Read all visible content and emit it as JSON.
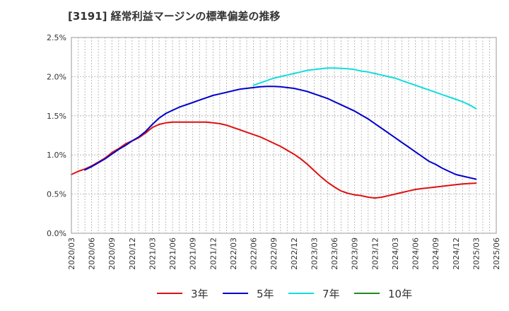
{
  "chart_data": {
    "type": "line",
    "title": "[3191]  経常利益マージンの標準偏差の推移",
    "xlabel": "",
    "ylabel": "",
    "ylim": [
      0,
      2.5
    ],
    "y_ticks": [
      "0.0%",
      "0.5%",
      "1.0%",
      "1.5%",
      "2.0%",
      "2.5%"
    ],
    "x_ticks": [
      "2020/03",
      "2020/06",
      "2020/09",
      "2020/12",
      "2021/03",
      "2021/06",
      "2021/09",
      "2021/12",
      "2022/03",
      "2022/06",
      "2022/09",
      "2022/12",
      "2023/03",
      "2023/06",
      "2023/09",
      "2023/12",
      "2024/03",
      "2024/06",
      "2024/09",
      "2024/12",
      "2025/03",
      "2025/06"
    ],
    "grid": true,
    "legend_position": "bottom",
    "series": [
      {
        "name": "3年",
        "color": "#dd1111",
        "points": [
          [
            "2020/03",
            0.75
          ],
          [
            "2020/04",
            0.79
          ],
          [
            "2020/05",
            0.82
          ],
          [
            "2020/06",
            0.86
          ],
          [
            "2020/07",
            0.91
          ],
          [
            "2020/08",
            0.96
          ],
          [
            "2020/09",
            1.03
          ],
          [
            "2020/10",
            1.08
          ],
          [
            "2020/11",
            1.14
          ],
          [
            "2020/12",
            1.18
          ],
          [
            "2021/01",
            1.22
          ],
          [
            "2021/02",
            1.28
          ],
          [
            "2021/03",
            1.35
          ],
          [
            "2021/04",
            1.39
          ],
          [
            "2021/05",
            1.41
          ],
          [
            "2021/06",
            1.42
          ],
          [
            "2021/07",
            1.42
          ],
          [
            "2021/08",
            1.42
          ],
          [
            "2021/09",
            1.42
          ],
          [
            "2021/10",
            1.42
          ],
          [
            "2021/11",
            1.42
          ],
          [
            "2021/12",
            1.41
          ],
          [
            "2022/01",
            1.4
          ],
          [
            "2022/02",
            1.38
          ],
          [
            "2022/03",
            1.35
          ],
          [
            "2022/04",
            1.32
          ],
          [
            "2022/05",
            1.29
          ],
          [
            "2022/06",
            1.26
          ],
          [
            "2022/07",
            1.23
          ],
          [
            "2022/08",
            1.19
          ],
          [
            "2022/09",
            1.15
          ],
          [
            "2022/10",
            1.11
          ],
          [
            "2022/11",
            1.06
          ],
          [
            "2022/12",
            1.01
          ],
          [
            "2023/01",
            0.95
          ],
          [
            "2023/02",
            0.88
          ],
          [
            "2023/03",
            0.8
          ],
          [
            "2023/04",
            0.72
          ],
          [
            "2023/05",
            0.65
          ],
          [
            "2023/06",
            0.59
          ],
          [
            "2023/07",
            0.54
          ],
          [
            "2023/08",
            0.51
          ],
          [
            "2023/09",
            0.49
          ],
          [
            "2023/10",
            0.48
          ],
          [
            "2023/11",
            0.46
          ],
          [
            "2023/12",
            0.45
          ],
          [
            "2024/01",
            0.46
          ],
          [
            "2024/02",
            0.48
          ],
          [
            "2024/03",
            0.5
          ],
          [
            "2024/04",
            0.52
          ],
          [
            "2024/05",
            0.54
          ],
          [
            "2024/06",
            0.56
          ],
          [
            "2024/07",
            0.57
          ],
          [
            "2024/08",
            0.58
          ],
          [
            "2024/09",
            0.59
          ],
          [
            "2024/10",
            0.6
          ],
          [
            "2024/11",
            0.61
          ],
          [
            "2024/12",
            0.62
          ],
          [
            "2025/01",
            0.63
          ],
          [
            "2025/02",
            0.635
          ],
          [
            "2025/03",
            0.64
          ]
        ]
      },
      {
        "name": "5年",
        "color": "#0000cc",
        "points": [
          [
            "2020/05",
            0.81
          ],
          [
            "2020/06",
            0.85
          ],
          [
            "2020/07",
            0.9
          ],
          [
            "2020/08",
            0.95
          ],
          [
            "2020/09",
            1.01
          ],
          [
            "2020/10",
            1.07
          ],
          [
            "2020/11",
            1.12
          ],
          [
            "2020/12",
            1.18
          ],
          [
            "2021/01",
            1.23
          ],
          [
            "2021/02",
            1.3
          ],
          [
            "2021/03",
            1.39
          ],
          [
            "2021/04",
            1.47
          ],
          [
            "2021/05",
            1.53
          ],
          [
            "2021/06",
            1.57
          ],
          [
            "2021/07",
            1.61
          ],
          [
            "2021/08",
            1.64
          ],
          [
            "2021/09",
            1.67
          ],
          [
            "2021/10",
            1.7
          ],
          [
            "2021/11",
            1.73
          ],
          [
            "2021/12",
            1.76
          ],
          [
            "2022/01",
            1.78
          ],
          [
            "2022/02",
            1.8
          ],
          [
            "2022/03",
            1.82
          ],
          [
            "2022/04",
            1.84
          ],
          [
            "2022/05",
            1.85
          ],
          [
            "2022/06",
            1.86
          ],
          [
            "2022/07",
            1.87
          ],
          [
            "2022/08",
            1.875
          ],
          [
            "2022/09",
            1.875
          ],
          [
            "2022/10",
            1.87
          ],
          [
            "2022/11",
            1.86
          ],
          [
            "2022/12",
            1.85
          ],
          [
            "2023/01",
            1.83
          ],
          [
            "2023/02",
            1.81
          ],
          [
            "2023/03",
            1.78
          ],
          [
            "2023/04",
            1.75
          ],
          [
            "2023/05",
            1.72
          ],
          [
            "2023/06",
            1.68
          ],
          [
            "2023/07",
            1.64
          ],
          [
            "2023/08",
            1.6
          ],
          [
            "2023/09",
            1.56
          ],
          [
            "2023/10",
            1.51
          ],
          [
            "2023/11",
            1.46
          ],
          [
            "2023/12",
            1.4
          ],
          [
            "2024/01",
            1.34
          ],
          [
            "2024/02",
            1.28
          ],
          [
            "2024/03",
            1.22
          ],
          [
            "2024/04",
            1.16
          ],
          [
            "2024/05",
            1.1
          ],
          [
            "2024/06",
            1.04
          ],
          [
            "2024/07",
            0.98
          ],
          [
            "2024/08",
            0.92
          ],
          [
            "2024/09",
            0.88
          ],
          [
            "2024/10",
            0.83
          ],
          [
            "2024/11",
            0.79
          ],
          [
            "2024/12",
            0.75
          ],
          [
            "2025/01",
            0.73
          ],
          [
            "2025/02",
            0.71
          ],
          [
            "2025/03",
            0.69
          ]
        ]
      },
      {
        "name": "7年",
        "color": "#11dddd",
        "points": [
          [
            "2022/06",
            1.89
          ],
          [
            "2022/07",
            1.92
          ],
          [
            "2022/08",
            1.95
          ],
          [
            "2022/09",
            1.98
          ],
          [
            "2022/10",
            2.0
          ],
          [
            "2022/11",
            2.02
          ],
          [
            "2022/12",
            2.04
          ],
          [
            "2023/01",
            2.06
          ],
          [
            "2023/02",
            2.08
          ],
          [
            "2023/03",
            2.09
          ],
          [
            "2023/04",
            2.1
          ],
          [
            "2023/05",
            2.11
          ],
          [
            "2023/06",
            2.11
          ],
          [
            "2023/07",
            2.105
          ],
          [
            "2023/08",
            2.1
          ],
          [
            "2023/09",
            2.09
          ],
          [
            "2023/10",
            2.07
          ],
          [
            "2023/11",
            2.06
          ],
          [
            "2023/12",
            2.04
          ],
          [
            "2024/01",
            2.02
          ],
          [
            "2024/02",
            2.0
          ],
          [
            "2024/03",
            1.98
          ],
          [
            "2024/04",
            1.95
          ],
          [
            "2024/05",
            1.92
          ],
          [
            "2024/06",
            1.89
          ],
          [
            "2024/07",
            1.86
          ],
          [
            "2024/08",
            1.83
          ],
          [
            "2024/09",
            1.8
          ],
          [
            "2024/10",
            1.77
          ],
          [
            "2024/11",
            1.74
          ],
          [
            "2024/12",
            1.71
          ],
          [
            "2025/01",
            1.68
          ],
          [
            "2025/02",
            1.64
          ],
          [
            "2025/03",
            1.59
          ]
        ]
      },
      {
        "name": "10年",
        "color": "#228822",
        "points": []
      }
    ]
  }
}
